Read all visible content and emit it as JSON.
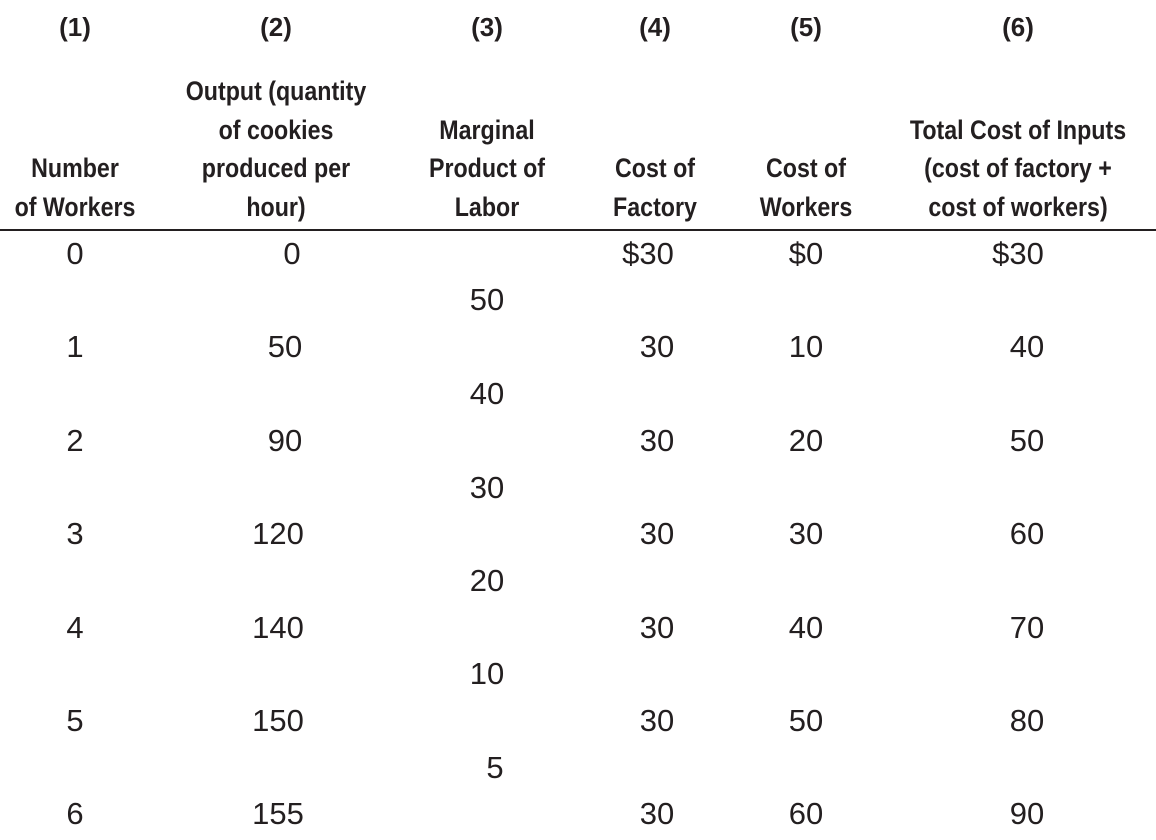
{
  "table": {
    "column_numbers": [
      "(1)",
      "(2)",
      "(3)",
      "(4)",
      "(5)",
      "(6)"
    ],
    "headers": [
      [
        "Number",
        "of Workers"
      ],
      [
        "Output (quantity",
        "of cookies",
        "produced per",
        "hour)"
      ],
      [
        "Marginal",
        "Product of",
        "Labor"
      ],
      [
        "Cost of",
        "Factory"
      ],
      [
        "Cost of",
        "Workers"
      ],
      [
        "Total Cost of Inputs",
        "(cost of factory +",
        "cost of workers)"
      ]
    ],
    "rows": [
      {
        "workers": "0",
        "output": "0",
        "cost_factory": "$30",
        "cost_workers": "$0",
        "total_cost": "$30"
      },
      {
        "workers": "1",
        "output": "50",
        "cost_factory": "30",
        "cost_workers": "10",
        "total_cost": "40"
      },
      {
        "workers": "2",
        "output": "90",
        "cost_factory": "30",
        "cost_workers": "20",
        "total_cost": "50"
      },
      {
        "workers": "3",
        "output": "120",
        "cost_factory": "30",
        "cost_workers": "30",
        "total_cost": "60"
      },
      {
        "workers": "4",
        "output": "140",
        "cost_factory": "30",
        "cost_workers": "40",
        "total_cost": "70"
      },
      {
        "workers": "5",
        "output": "150",
        "cost_factory": "30",
        "cost_workers": "50",
        "total_cost": "80"
      },
      {
        "workers": "6",
        "output": "155",
        "cost_factory": "30",
        "cost_workers": "60",
        "total_cost": "90"
      }
    ],
    "marginal_product": [
      "50",
      "40",
      "30",
      "20",
      "10",
      "5"
    ]
  }
}
